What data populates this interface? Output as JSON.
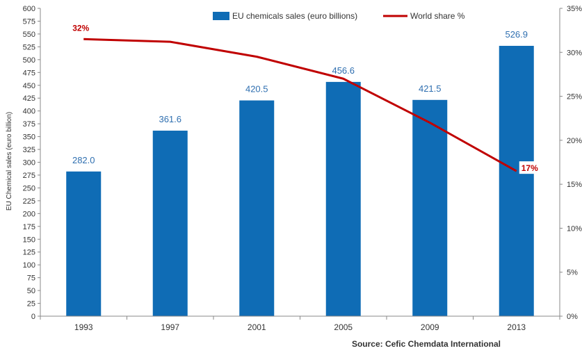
{
  "chart_data": {
    "type": "bar",
    "categories": [
      "1993",
      "1997",
      "2001",
      "2005",
      "2009",
      "2013"
    ],
    "series": [
      {
        "name": "EU chemicals sales (euro billions)",
        "type": "bar",
        "axis": "left",
        "values": [
          282.0,
          361.6,
          420.5,
          456.6,
          421.5,
          526.9
        ],
        "labels": [
          "282.0",
          "361.6",
          "420.5",
          "456.6",
          "421.5",
          "526.9"
        ],
        "color": "#0f6cb5"
      },
      {
        "name": "World share %",
        "type": "line",
        "axis": "right",
        "values": [
          31.5,
          31.2,
          29.5,
          27.0,
          22.0,
          16.5
        ],
        "point_labels": {
          "0": "32%",
          "5": "17%"
        },
        "color": "#c00000"
      }
    ],
    "ylabel": "EU Chemical sales (euro billion)",
    "ylim": [
      0,
      600
    ],
    "yticks": [
      "0",
      "25",
      "50",
      "75",
      "100",
      "125",
      "150",
      "175",
      "200",
      "225",
      "250",
      "275",
      "300",
      "325",
      "350",
      "375",
      "400",
      "425",
      "450",
      "475",
      "500",
      "525",
      "550",
      "575",
      "600"
    ],
    "y2lim": [
      0,
      35
    ],
    "y2ticks": [
      "0%",
      "5%",
      "10%",
      "15%",
      "20%",
      "25%",
      "30%",
      "35%"
    ],
    "legend_position": "top",
    "grid": false,
    "source": "Source: Cefic Chemdata International"
  }
}
